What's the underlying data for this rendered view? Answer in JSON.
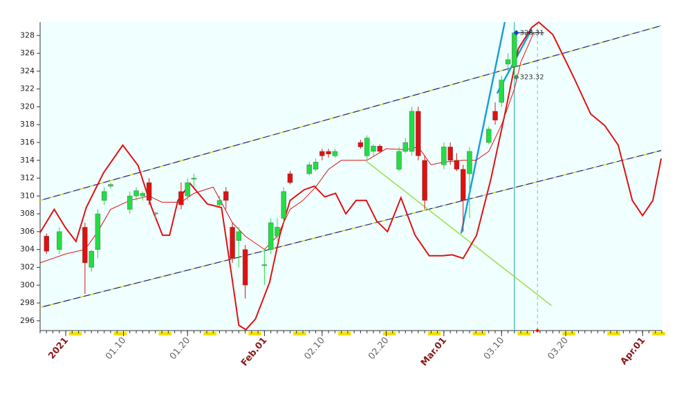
{
  "chart_data": {
    "type": "candlestick",
    "xlim": [
      -3,
      94
    ],
    "ylim": [
      294.9,
      329.5
    ],
    "yticks": [
      296,
      298,
      300,
      302,
      304,
      306,
      308,
      310,
      312,
      314,
      316,
      318,
      320,
      322,
      324,
      326,
      328
    ],
    "xticks": [
      {
        "value": 1,
        "label": "2021"
      },
      {
        "value": 10,
        "label": "01.10"
      },
      {
        "value": 20,
        "label": "01.20"
      },
      {
        "value": 32,
        "label": "Feb.01"
      },
      {
        "value": 41,
        "label": "02.10"
      },
      {
        "value": 51,
        "label": "02.20"
      },
      {
        "value": 60,
        "label": "Mar.01"
      },
      {
        "value": 69,
        "label": "03.10"
      },
      {
        "value": 79,
        "label": "03.20"
      },
      {
        "value": 91,
        "label": "Apr.01"
      }
    ],
    "up_color": "#22dd44",
    "down_color": "#dd1111",
    "background": "#f0ffff",
    "x": [
      -2,
      0,
      4,
      5,
      6,
      7,
      8,
      11,
      12,
      13,
      14,
      15,
      19,
      20,
      21,
      25,
      26,
      27,
      28,
      29,
      32,
      33,
      34,
      35,
      36,
      39,
      40,
      41,
      42,
      43,
      47,
      48,
      49,
      50,
      53,
      54,
      55,
      56,
      57,
      60,
      61,
      62,
      63,
      64,
      67,
      68,
      69,
      70,
      71
    ],
    "open": [
      305.5,
      304,
      306.5,
      302,
      304,
      309.5,
      311.1,
      308.5,
      310,
      310,
      311.5,
      308,
      310.5,
      310,
      311.9,
      309,
      310.5,
      306.5,
      305,
      304,
      302.2,
      304,
      305.5,
      307.5,
      312.5,
      312.5,
      313,
      315,
      315,
      314.5,
      316,
      314.5,
      315,
      315.6,
      313,
      315,
      315,
      319.5,
      314,
      313.5,
      315.5,
      314,
      313,
      312.5,
      316,
      319.5,
      320.5,
      324.8,
      324.5
    ],
    "high": [
      305.8,
      306.5,
      307,
      304,
      308.5,
      311,
      311.5,
      310.5,
      311,
      310.5,
      312,
      308.2,
      311.5,
      312,
      312.5,
      310,
      311,
      307,
      306.5,
      304.5,
      304,
      307.5,
      307.5,
      311,
      312.8,
      313.8,
      314.2,
      315.3,
      315.3,
      315.3,
      316.3,
      316.8,
      315.8,
      315.8,
      315.5,
      316.5,
      320,
      320,
      314.5,
      316,
      316,
      314.8,
      313.5,
      315.5,
      317.8,
      320.5,
      323.5,
      326,
      328.5
    ],
    "low": [
      303.5,
      303.5,
      299,
      301.5,
      303,
      309,
      310.8,
      308,
      309.5,
      309.5,
      309,
      307.5,
      308.5,
      309.5,
      311,
      308.8,
      308.5,
      302.5,
      302,
      298.5,
      300,
      303.5,
      305,
      307,
      311.3,
      312.3,
      312.8,
      314,
      314.3,
      314.3,
      315.3,
      314,
      314.5,
      314.8,
      312.8,
      314.8,
      314.5,
      314,
      308.5,
      313,
      313.5,
      312.8,
      306,
      307.5,
      315.8,
      318,
      320,
      324,
      323.5
    ],
    "close": [
      303.8,
      306,
      302.5,
      303.8,
      308,
      310.5,
      311.3,
      310,
      310.6,
      310.3,
      309.5,
      308.1,
      309,
      311.5,
      312,
      309.5,
      309.5,
      303,
      306,
      300,
      302.3,
      307,
      306.5,
      310.5,
      311.5,
      313.5,
      313.8,
      314.5,
      314.7,
      315,
      315.5,
      316.5,
      315.6,
      315,
      315,
      316,
      319.5,
      314.5,
      309.5,
      315.5,
      314,
      313,
      309.5,
      315,
      317.5,
      318.5,
      323,
      325.3,
      328.3
    ],
    "lines": [
      {
        "color": "#1a1a8a",
        "dash_color": "#e6e600",
        "width": 1.2,
        "x": [
          -3,
          93.9
        ],
        "values": [
          309.5,
          329.1
        ]
      },
      {
        "color": "#1a1a8a",
        "dash_color": "#e6e600",
        "width": 1.2,
        "x": [
          -3,
          93.9
        ],
        "values": [
          297.5,
          315.1
        ]
      },
      {
        "color": "#99dd44",
        "width": 1.5,
        "x": [
          47.9,
          76.8
        ],
        "values": [
          313.9,
          297.7
        ]
      },
      {
        "color": "#1a9fd8",
        "width": 2.5,
        "x": [
          62.7,
          69.5
        ],
        "values": [
          305.8,
          329.5
        ]
      },
      {
        "color": "#1a9fd8",
        "width": 2.5,
        "x": [
          68.3,
          73.7
        ],
        "values": [
          321.5,
          328.7
        ]
      },
      {
        "color": "#e01010",
        "width": 1,
        "x": [
          -3,
          -1,
          1,
          4,
          6,
          8,
          11,
          14,
          16,
          19,
          21,
          24,
          27,
          29,
          32,
          34,
          36,
          38,
          40,
          42,
          44,
          48,
          51,
          54,
          56,
          58,
          60,
          63,
          65,
          67,
          69,
          71,
          72,
          74
        ],
        "values": [
          302.5,
          303,
          303.5,
          304,
          306,
          308.5,
          309.5,
          310,
          309.3,
          309.3,
          310.3,
          311,
          307,
          305.5,
          304,
          305.5,
          308.5,
          309.5,
          311,
          313,
          314,
          314,
          315.3,
          315.2,
          315.5,
          313.5,
          313.8,
          314,
          314,
          315,
          318,
          322,
          325,
          328.3
        ]
      },
      {
        "color": "#e01010",
        "width": 2,
        "x": [
          -3,
          -0.8,
          1,
          2.6,
          4.2,
          6.9,
          9.9,
          12.3,
          14.4,
          16.1,
          17.2,
          18.5,
          20.4,
          23.1,
          25.3,
          26.9,
          28,
          29.1,
          30.6,
          32.8,
          34.4,
          36,
          38.2,
          39.8,
          41.4,
          43.1,
          44.7,
          46.3,
          47.9,
          49.5,
          51.2,
          53.3,
          55.5,
          57.7,
          59.8,
          61.3,
          63,
          65.1,
          67.3,
          69.4,
          71.6,
          73.7,
          74.8,
          77,
          80.2,
          82.9,
          85.1,
          87.2,
          89.4,
          91,
          92.6,
          93.9
        ],
        "values": [
          305.9,
          308.5,
          306.4,
          304.9,
          308.7,
          312.6,
          315.7,
          313.4,
          308.7,
          305.6,
          305.6,
          309.5,
          311.4,
          309.1,
          308.7,
          301,
          295.5,
          295,
          296.2,
          300.3,
          305.6,
          309.5,
          310.7,
          311.1,
          309.9,
          310.3,
          308,
          309.5,
          309.5,
          307.2,
          306,
          309.8,
          305.6,
          303.3,
          303.3,
          303.4,
          303,
          305.6,
          311.8,
          318.8,
          326.5,
          328.9,
          329.5,
          328.1,
          323.4,
          319.2,
          317.9,
          315.7,
          309.5,
          307.8,
          309.5,
          314.2
        ]
      }
    ],
    "vlines": [
      {
        "x": 71,
        "color": "#1a9fa0",
        "dash": false
      },
      {
        "x": 74.6,
        "color": "#aaaaaa",
        "dash": true
      }
    ],
    "annotations": [
      {
        "label": "328.31",
        "x": 71.3,
        "y": 328.31,
        "color": "#1a3fd0",
        "line_to": 75.6
      },
      {
        "label": "323.32",
        "x": 71.3,
        "y": 323.32,
        "color": "#558855"
      }
    ]
  }
}
